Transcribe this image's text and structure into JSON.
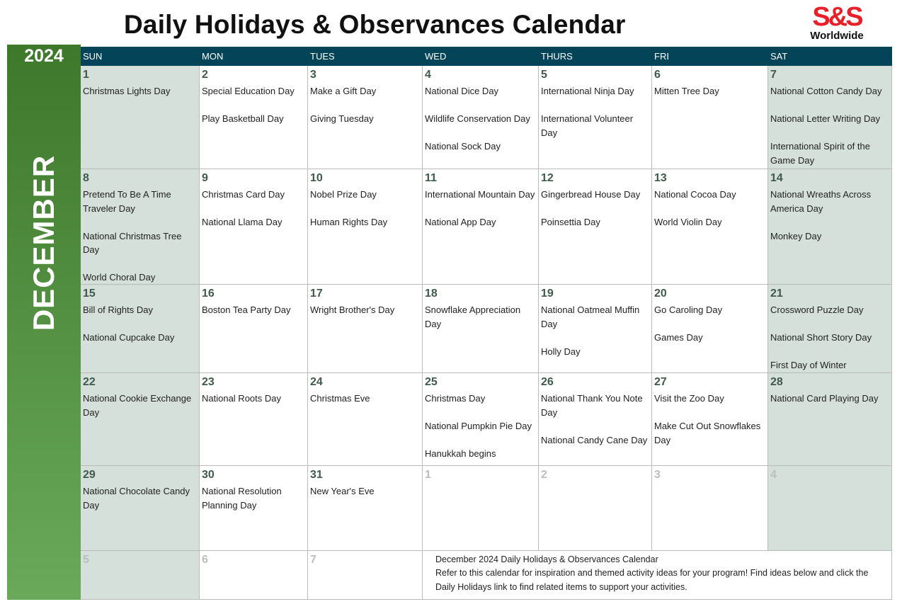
{
  "title": "Daily Holidays & Observances Calendar",
  "logo": {
    "mark": "S&S",
    "sub": "Worldwide",
    "color": "#e8202a"
  },
  "year": "2024",
  "month": "DECEMBER",
  "colors": {
    "header": "#034459",
    "weekend": "#d6e0da",
    "sidebar_top": "#3e782b",
    "sidebar_bottom": "#6aa95a"
  },
  "weekdays": [
    "SUN",
    "MON",
    "TUES",
    "WED",
    "THURS",
    "FRI",
    "SAT"
  ],
  "weeks": [
    [
      {
        "day": "1",
        "events": [
          "Christmas Lights Day"
        ]
      },
      {
        "day": "2",
        "events": [
          "Special Education Day",
          "Play Basketball Day"
        ]
      },
      {
        "day": "3",
        "events": [
          "Make a Gift Day",
          "Giving Tuesday"
        ]
      },
      {
        "day": "4",
        "events": [
          "National Dice Day",
          "Wildlife Conservation Day",
          "National Sock Day"
        ]
      },
      {
        "day": "5",
        "events": [
          "International Ninja Day",
          "International Volunteer Day"
        ]
      },
      {
        "day": "6",
        "events": [
          "Mitten Tree Day"
        ]
      },
      {
        "day": "7",
        "events": [
          "National Cotton Candy Day",
          "National Letter Writing Day",
          "International Spirit of the Game Day"
        ]
      }
    ],
    [
      {
        "day": "8",
        "events": [
          "Pretend To Be A Time Traveler Day",
          "National Christmas Tree Day",
          "World Choral Day"
        ]
      },
      {
        "day": "9",
        "events": [
          "Christmas Card Day",
          "National Llama Day"
        ]
      },
      {
        "day": "10",
        "events": [
          "Nobel Prize Day",
          "Human Rights Day"
        ]
      },
      {
        "day": "11",
        "events": [
          "International Mountain Day",
          "National App Day"
        ]
      },
      {
        "day": "12",
        "events": [
          "Gingerbread House Day",
          "Poinsettia Day"
        ]
      },
      {
        "day": "13",
        "events": [
          "National Cocoa Day",
          "World Violin Day"
        ]
      },
      {
        "day": "14",
        "events": [
          "National Wreaths Across America Day",
          "Monkey Day"
        ]
      }
    ],
    [
      {
        "day": "15",
        "events": [
          "Bill of Rights Day",
          "National Cupcake Day"
        ]
      },
      {
        "day": "16",
        "events": [
          "Boston Tea Party Day"
        ]
      },
      {
        "day": "17",
        "events": [
          "Wright Brother's Day"
        ]
      },
      {
        "day": "18",
        "events": [
          "Snowflake Appreciation Day"
        ]
      },
      {
        "day": "19",
        "events": [
          "National Oatmeal Muffin Day",
          "Holly Day"
        ]
      },
      {
        "day": "20",
        "events": [
          "Go Caroling Day",
          "Games Day"
        ]
      },
      {
        "day": "21",
        "events": [
          "Crossword Puzzle Day",
          "National Short Story Day",
          "First Day of Winter"
        ]
      }
    ],
    [
      {
        "day": "22",
        "events": [
          "National Cookie Exchange Day"
        ]
      },
      {
        "day": "23",
        "events": [
          "National Roots Day"
        ]
      },
      {
        "day": "24",
        "events": [
          "Christmas Eve"
        ]
      },
      {
        "day": "25",
        "events": [
          "Christmas Day",
          "National Pumpkin Pie Day",
          "Hanukkah begins"
        ]
      },
      {
        "day": "26",
        "events": [
          "National Thank You Note Day",
          "National Candy Cane Day"
        ]
      },
      {
        "day": "27",
        "events": [
          "Visit the Zoo Day",
          "Make Cut Out Snowflakes Day"
        ]
      },
      {
        "day": "28",
        "events": [
          "National Card Playing Day"
        ]
      }
    ],
    [
      {
        "day": "29",
        "events": [
          "National Chocolate Candy Day"
        ]
      },
      {
        "day": "30",
        "events": [
          "National Resolution Planning Day"
        ]
      },
      {
        "day": "31",
        "events": [
          "New Year's Eve"
        ]
      },
      {
        "day": "1",
        "dim": true,
        "events": []
      },
      {
        "day": "2",
        "dim": true,
        "events": []
      },
      {
        "day": "3",
        "dim": true,
        "events": []
      },
      {
        "day": "4",
        "dim": true,
        "events": []
      }
    ],
    [
      {
        "day": "5",
        "dim": true,
        "events": []
      },
      {
        "day": "6",
        "dim": true,
        "events": []
      },
      {
        "day": "7",
        "dim": true,
        "events": []
      }
    ]
  ],
  "note": {
    "title": "December 2024 Daily Holidays & Observances Calendar",
    "body": "Refer to this calendar for inspiration and themed activity ideas for your program! Find ideas below and click the Daily Holidays link to find related items to support your activities."
  }
}
